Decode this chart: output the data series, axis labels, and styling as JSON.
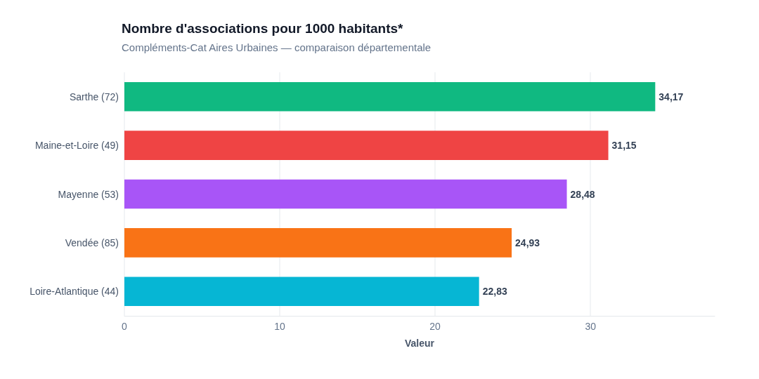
{
  "chart_data": {
    "type": "bar",
    "orientation": "horizontal",
    "title": "Nombre d'associations pour 1000 habitants*",
    "subtitle": "Compléments-Cat Aires Urbaines — comparaison départementale",
    "xlabel": "Valeur",
    "categories": [
      "Sarthe (72)",
      "Maine-et-Loire (49)",
      "Mayenne (53)",
      "Vendée (85)",
      "Loire-Atlantique (44)"
    ],
    "values": [
      34.17,
      31.15,
      28.48,
      24.93,
      22.83
    ],
    "colors": [
      "#10b981",
      "#ef4444",
      "#a855f7",
      "#f97316",
      "#06b6d4"
    ],
    "value_labels": [
      "34,17",
      "31,15",
      "28,48",
      "24,93",
      "22,83"
    ],
    "xlim": [
      0,
      38
    ],
    "xticks": [
      0,
      10,
      20,
      30
    ],
    "grid": "x"
  }
}
